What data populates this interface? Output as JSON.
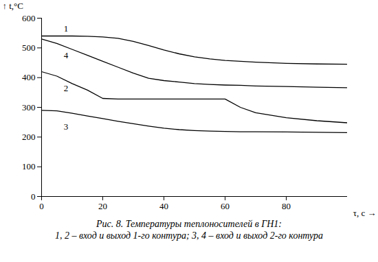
{
  "chart_data": {
    "type": "line",
    "caption": [
      "Рис. 8. Температуры теплоносителей в ГН1:",
      "1, 2 – вход и выход 1-го контура; 3, 4 – вход и выход 2-го контура"
    ],
    "x_label": "τ, с",
    "y_label": "t,°C",
    "x": [
      0,
      5,
      10,
      15,
      20,
      25,
      30,
      35,
      40,
      45,
      50,
      55,
      60,
      65,
      70,
      80,
      90,
      100
    ],
    "series": [
      {
        "color": "#000000",
        "values": [
          540,
          540,
          540,
          539,
          537,
          532,
          522,
          508,
          493,
          480,
          470,
          463,
          458,
          455,
          452,
          448,
          446,
          445
        ]
      },
      {
        "color": "#000000",
        "values": [
          420,
          405,
          380,
          358,
          330,
          328,
          328,
          328,
          328,
          328,
          328,
          328,
          328,
          300,
          282,
          265,
          255,
          248
        ]
      },
      {
        "color": "#000000",
        "values": [
          290,
          288,
          280,
          271,
          262,
          253,
          245,
          237,
          230,
          225,
          222,
          220,
          219,
          218,
          218,
          217,
          216,
          215
        ]
      },
      {
        "color": "#000000",
        "values": [
          530,
          515,
          495,
          475,
          455,
          435,
          415,
          398,
          390,
          385,
          380,
          377,
          375,
          374,
          372,
          370,
          368,
          366
        ]
      }
    ],
    "annotations": [
      {
        "text": "1",
        "x": 8,
        "y": 565
      },
      {
        "text": "4",
        "x": 8,
        "y": 475
      },
      {
        "text": "2",
        "x": 8,
        "y": 365
      },
      {
        "text": "3",
        "x": 8,
        "y": 235
      }
    ],
    "xlim": [
      0,
      100
    ],
    "xticks": [
      0,
      20,
      40,
      60,
      80
    ],
    "ylim": [
      0,
      600
    ],
    "yticks": [
      0,
      100,
      200,
      300,
      400,
      500,
      600
    ],
    "grid": false,
    "line_style": "solid"
  }
}
